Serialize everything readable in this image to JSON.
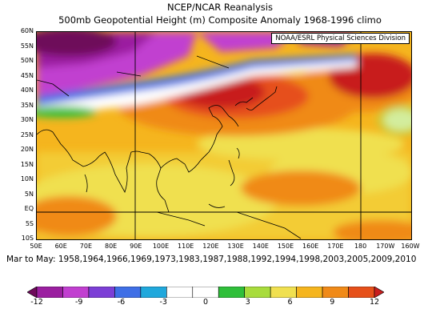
{
  "header": {
    "source": "NCEP/NCAR Reanalysis",
    "title": "500mb Geopotential Height (m) Composite Anomaly 1968-1996 climo"
  },
  "credit": "NOAA/ESRL Physical Sciences Division",
  "latitude_labels": [
    "60N",
    "55N",
    "50N",
    "45N",
    "40N",
    "35N",
    "30N",
    "25N",
    "20N",
    "15N",
    "10N",
    "5N",
    "EQ",
    "5S",
    "10S"
  ],
  "longitude_labels": [
    "50E",
    "60E",
    "70E",
    "80E",
    "90E",
    "100E",
    "110E",
    "120E",
    "130E",
    "140E",
    "150E",
    "160E",
    "170E",
    "180",
    "170W",
    "160W"
  ],
  "period_caption": "Mar to May: 1958,1964,1966,1969,1973,1983,1987,1988,1992,1994,1998,2003,2005,2009,2010",
  "colorbar": {
    "tick_labels": [
      "-12",
      "-9",
      "-6",
      "-3",
      "0",
      "3",
      "6",
      "9",
      "12"
    ],
    "colors": [
      "#6e0a5a",
      "#9b1fa0",
      "#c13fd0",
      "#7c3fd6",
      "#3f6fe6",
      "#20a8dc",
      "#ffffff",
      "#ffffff",
      "#2fbf3a",
      "#a8dc3c",
      "#f0e050",
      "#f5b51e",
      "#f08a18",
      "#e6501a",
      "#c81e1e"
    ]
  }
}
